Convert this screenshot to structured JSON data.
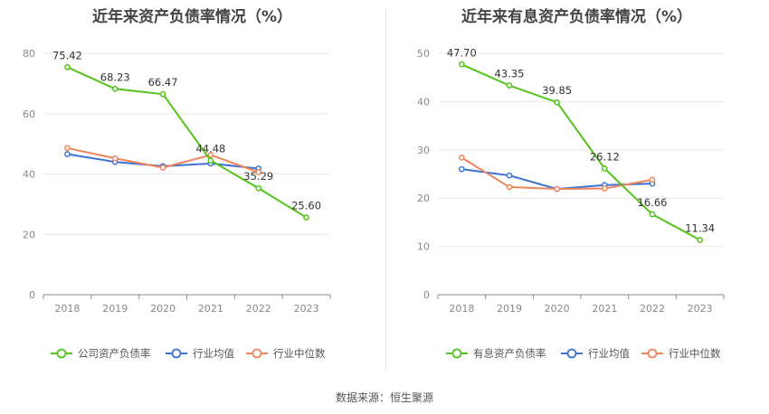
{
  "source_label": "数据来源：恒生聚源",
  "chart_data": [
    {
      "type": "line",
      "title": "近年来资产负债率情况（%）",
      "x": [
        "2018",
        "2019",
        "2020",
        "2021",
        "2022",
        "2023"
      ],
      "ylim": [
        0,
        80
      ],
      "yticks": [
        0,
        20,
        40,
        60,
        80
      ],
      "grid": true,
      "legend_position": "bottom",
      "series": [
        {
          "name": "公司资产负债率",
          "color": "#52c41a",
          "values": [
            75.42,
            68.23,
            66.47,
            44.48,
            35.29,
            25.6
          ],
          "labels": [
            "75.42",
            "68.23",
            "66.47",
            "44.48",
            "35.29",
            "25.60"
          ]
        },
        {
          "name": "行业均值",
          "color": "#3e72d6",
          "values": [
            46.6,
            44.0,
            42.6,
            43.5,
            41.8,
            null
          ]
        },
        {
          "name": "行业中位数",
          "color": "#f0845c",
          "values": [
            48.6,
            45.2,
            42.1,
            46.3,
            40.6,
            null
          ]
        }
      ]
    },
    {
      "type": "line",
      "title": "近年来有息资产负债率情况（%）",
      "x": [
        "2018",
        "2019",
        "2020",
        "2021",
        "2022",
        "2023"
      ],
      "ylim": [
        0,
        50
      ],
      "yticks": [
        0,
        10,
        20,
        30,
        40,
        50
      ],
      "grid": true,
      "legend_position": "bottom",
      "series": [
        {
          "name": "有息资产负债率",
          "color": "#52c41a",
          "values": [
            47.7,
            43.35,
            39.85,
            26.12,
            16.66,
            11.34
          ],
          "labels": [
            "47.70",
            "43.35",
            "39.85",
            "26.12",
            "16.66",
            "11.34"
          ]
        },
        {
          "name": "行业均值",
          "color": "#3e72d6",
          "values": [
            26.0,
            24.7,
            21.9,
            22.7,
            23.0,
            null
          ]
        },
        {
          "name": "行业中位数",
          "color": "#f0845c",
          "values": [
            28.4,
            22.3,
            21.9,
            22.0,
            23.8,
            null
          ]
        }
      ]
    }
  ]
}
